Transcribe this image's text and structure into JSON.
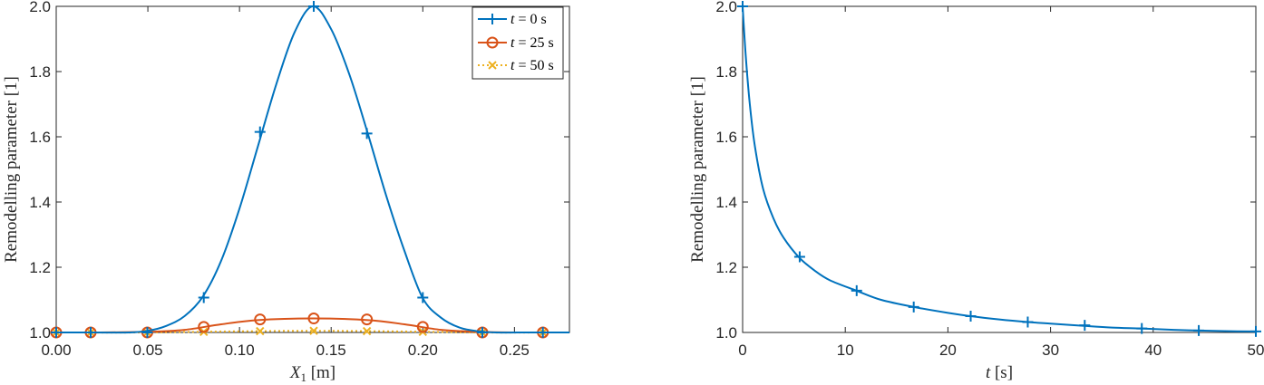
{
  "chart_data": [
    {
      "type": "line",
      "xlabel": "X₁ [m]",
      "ylabel": "Remodelling parameter [1]",
      "xlim": [
        0,
        0.28
      ],
      "ylim": [
        1.0,
        2.0
      ],
      "xticks": [
        "0.00",
        "0.05",
        "0.10",
        "0.15",
        "0.20",
        "0.25"
      ],
      "xtick_values": [
        0,
        0.05,
        0.1,
        0.15,
        0.2,
        0.25
      ],
      "yticks": [
        "1.0",
        "1.2",
        "1.4",
        "1.6",
        "1.8",
        "2.0"
      ],
      "ytick_values": [
        1.0,
        1.2,
        1.4,
        1.6,
        1.8,
        2.0
      ],
      "legend_position": "top-right",
      "series": [
        {
          "name": "t = 0   s",
          "color": "#0072BD",
          "marker": "plus",
          "line": "solid",
          "x": [
            0.0,
            0.02,
            0.04,
            0.05,
            0.06,
            0.07,
            0.08,
            0.09,
            0.1,
            0.11,
            0.12,
            0.13,
            0.14,
            0.15,
            0.16,
            0.17,
            0.18,
            0.19,
            0.2,
            0.21,
            0.22,
            0.23,
            0.24,
            0.26,
            0.28
          ],
          "y": [
            1.0,
            1.0,
            1.0,
            1.005,
            1.02,
            1.05,
            1.11,
            1.22,
            1.38,
            1.57,
            1.76,
            1.92,
            2.0,
            1.93,
            1.79,
            1.61,
            1.42,
            1.25,
            1.105,
            1.045,
            1.015,
            1.004,
            1.0,
            1.0,
            1.0
          ],
          "marker_x": [
            0.0,
            0.0188,
            0.0497,
            0.0805,
            0.1112,
            0.1405,
            0.1695,
            0.2,
            0.2325,
            0.2655
          ],
          "marker_y": [
            1.0,
            1.0,
            1.0,
            1.107,
            1.615,
            2.0,
            1.61,
            1.107,
            1.0,
            1.0
          ]
        },
        {
          "name": "t = 25 s",
          "color": "#D95319",
          "marker": "circle",
          "line": "solid",
          "x": [
            0.0,
            0.02,
            0.05,
            0.07,
            0.09,
            0.11,
            0.14,
            0.17,
            0.19,
            0.21,
            0.23,
            0.25,
            0.28
          ],
          "y": [
            1.0,
            1.0,
            1.002,
            1.008,
            1.025,
            1.038,
            1.043,
            1.038,
            1.025,
            1.008,
            1.002,
            1.0,
            1.0
          ],
          "marker_x": [
            0.0,
            0.0188,
            0.0497,
            0.0805,
            0.1112,
            0.1405,
            0.1695,
            0.2,
            0.2325,
            0.2655
          ],
          "marker_y": [
            1.0,
            1.0,
            1.0,
            1.017,
            1.04,
            1.043,
            1.04,
            1.017,
            1.0,
            1.0
          ]
        },
        {
          "name": "t = 50 s",
          "color": "#EDB120",
          "marker": "x",
          "line": "dotted",
          "x": [
            0.0,
            0.05,
            0.09,
            0.14,
            0.19,
            0.23,
            0.28
          ],
          "y": [
            1.0,
            1.0,
            1.003,
            1.005,
            1.003,
            1.0,
            1.0
          ],
          "marker_x": [
            0.0,
            0.0188,
            0.0497,
            0.0805,
            0.1112,
            0.1405,
            0.1695,
            0.2,
            0.2325,
            0.2655
          ],
          "marker_y": [
            1.0,
            1.0,
            1.0,
            1.002,
            1.004,
            1.005,
            1.004,
            1.002,
            1.0,
            1.0
          ]
        }
      ]
    },
    {
      "type": "line",
      "xlabel": "t [s]",
      "ylabel": "Remodelling parameter [1]",
      "xlim": [
        0,
        50
      ],
      "ylim": [
        1.0,
        2.0
      ],
      "xticks": [
        "0",
        "10",
        "20",
        "30",
        "40",
        "50"
      ],
      "xtick_values": [
        0,
        10,
        20,
        30,
        40,
        50
      ],
      "yticks": [
        "1.0",
        "1.2",
        "1.4",
        "1.6",
        "1.8",
        "2.0"
      ],
      "ytick_values": [
        1.0,
        1.2,
        1.4,
        1.6,
        1.8,
        2.0
      ],
      "series": [
        {
          "color": "#0072BD",
          "marker": "plus",
          "line": "solid",
          "x": [
            0,
            0.3,
            0.7,
            1.2,
            2.0,
            3.0,
            4.0,
            5.5,
            7.0,
            8.5,
            11.1,
            13.5,
            16.7,
            20.0,
            22.2,
            25.0,
            27.8,
            30.0,
            33.3,
            36.0,
            38.9,
            42.0,
            44.4,
            47.0,
            50.0
          ],
          "y": [
            2.0,
            1.85,
            1.7,
            1.57,
            1.44,
            1.35,
            1.29,
            1.23,
            1.19,
            1.16,
            1.128,
            1.1,
            1.078,
            1.06,
            1.05,
            1.04,
            1.032,
            1.027,
            1.02,
            1.015,
            1.012,
            1.008,
            1.006,
            1.004,
            1.003
          ],
          "marker_x": [
            0,
            5.56,
            11.11,
            16.67,
            22.22,
            27.78,
            33.33,
            38.89,
            44.44,
            50.0
          ],
          "marker_y": [
            2.0,
            1.232,
            1.128,
            1.078,
            1.05,
            1.032,
            1.022,
            1.012,
            1.006,
            1.003
          ]
        }
      ]
    }
  ]
}
